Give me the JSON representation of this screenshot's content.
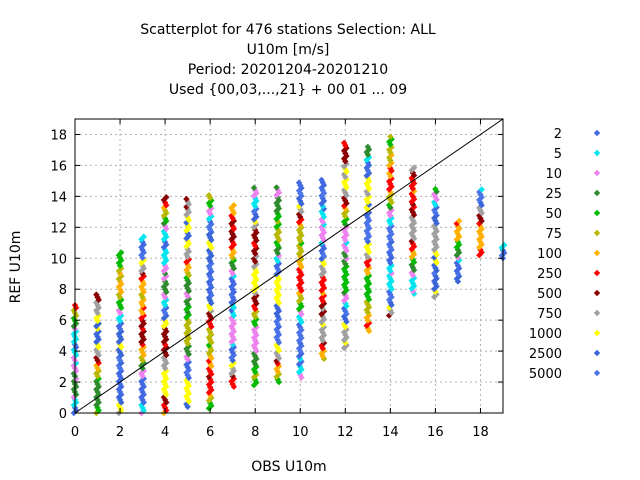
{
  "chart_data": {
    "type": "scatter",
    "title_lines": [
      "Scatterplot for  476 stations Selection: ALL",
      "U10m [m/s]",
      "Period: 20201204-20201210",
      "Used {00,03,...,21} + 00 01 ... 09"
    ],
    "xlabel": "OBS U10m",
    "ylabel": "REF U10m",
    "xlim": [
      0,
      19
    ],
    "ylim": [
      0,
      19
    ],
    "xticks": [
      "0",
      "2",
      "4",
      "6",
      "8",
      "10",
      "12",
      "14",
      "16",
      "18"
    ],
    "yticks": [
      "0",
      "2",
      "4",
      "6",
      "8",
      "10",
      "12",
      "14",
      "16",
      "18"
    ],
    "grid": true,
    "legend_position": "right",
    "reference_line": "y = x",
    "series": [
      {
        "name": "2",
        "color": "#4169e1"
      },
      {
        "name": "5",
        "color": "#00e5ee"
      },
      {
        "name": "10",
        "color": "#ee82ee"
      },
      {
        "name": "25",
        "color": "#2e8b2e"
      },
      {
        "name": "50",
        "color": "#00bb00"
      },
      {
        "name": "75",
        "color": "#b8b800"
      },
      {
        "name": "100",
        "color": "#ffb000"
      },
      {
        "name": "250",
        "color": "#ff0000"
      },
      {
        "name": "500",
        "color": "#8b0000"
      },
      {
        "name": "750",
        "color": "#a0a0a0"
      },
      {
        "name": "1000",
        "color": "#ffff00"
      },
      {
        "name": "2500",
        "color": "#3a66d8"
      },
      {
        "name": "5000",
        "color": "#4a74e8"
      }
    ],
    "columns": [
      {
        "x": 0,
        "ymin": 0,
        "ymax": 7
      },
      {
        "x": 1,
        "ymin": 0,
        "ymax": 7.8
      },
      {
        "x": 2,
        "ymin": 0,
        "ymax": 10.5
      },
      {
        "x": 3,
        "ymin": 0,
        "ymax": 11.4
      },
      {
        "x": 4,
        "ymin": 0,
        "ymax": 14
      },
      {
        "x": 5,
        "ymin": 0.4,
        "ymax": 13.9
      },
      {
        "x": 6,
        "ymin": 0.3,
        "ymax": 14.1
      },
      {
        "x": 7,
        "ymin": 1.7,
        "ymax": 13.5
      },
      {
        "x": 8,
        "ymin": 1.8,
        "ymax": 14.6
      },
      {
        "x": 9,
        "ymin": 2,
        "ymax": 14.7
      },
      {
        "x": 10,
        "ymin": 2.3,
        "ymax": 15
      },
      {
        "x": 11,
        "ymin": 3.5,
        "ymax": 15.2
      },
      {
        "x": 12,
        "ymin": 4.2,
        "ymax": 17.5
      },
      {
        "x": 13,
        "ymin": 5.3,
        "ymax": 17.3
      },
      {
        "x": 14,
        "ymin": 6.3,
        "ymax": 18
      },
      {
        "x": 15,
        "ymin": 7.7,
        "ymax": 16
      },
      {
        "x": 16,
        "ymin": 7.5,
        "ymax": 14.5
      },
      {
        "x": 17,
        "ymin": 8.5,
        "ymax": 12.5
      },
      {
        "x": 18,
        "ymin": 10.2,
        "ymax": 14.5
      },
      {
        "x": 19,
        "ymin": 10,
        "ymax": 11
      }
    ]
  }
}
